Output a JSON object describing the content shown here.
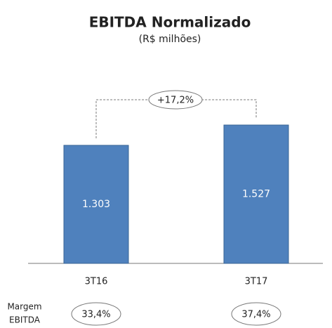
{
  "chart_data": {
    "type": "bar",
    "title": "EBITDA Normalizado",
    "subtitle": "(R$ milhões)",
    "categories": [
      "3T16",
      "3T17"
    ],
    "values": [
      1303,
      1527
    ],
    "value_labels": [
      "1.303",
      "1.527"
    ],
    "color": "#4f81bd",
    "annotation": "+17,2%",
    "margin": {
      "label": [
        "Margem",
        "EBITDA"
      ],
      "values": [
        33.4,
        37.4
      ],
      "value_labels": [
        "33,4%",
        "37,4%"
      ]
    }
  }
}
